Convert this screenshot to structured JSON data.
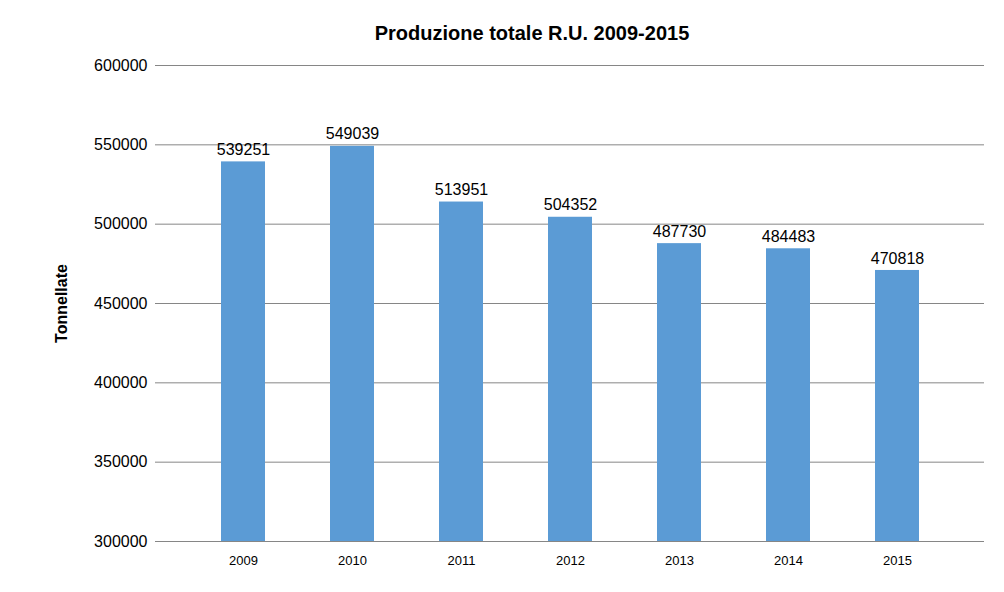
{
  "chart_data": {
    "type": "bar",
    "title": "Produzione totale R.U. 2009-2015",
    "y_label": "Tonnellate",
    "categories": [
      "2009",
      "2010",
      "2011",
      "2012",
      "2013",
      "2014",
      "2015"
    ],
    "values": [
      539251,
      549039,
      513951,
      504352,
      487730,
      484483,
      470818
    ],
    "color": "#5b9bd5",
    "ylim": [
      300000,
      600000
    ],
    "yticks": [
      300000,
      350000,
      400000,
      450000,
      500000,
      550000,
      600000
    ],
    "grid": true,
    "data_labels": true
  }
}
